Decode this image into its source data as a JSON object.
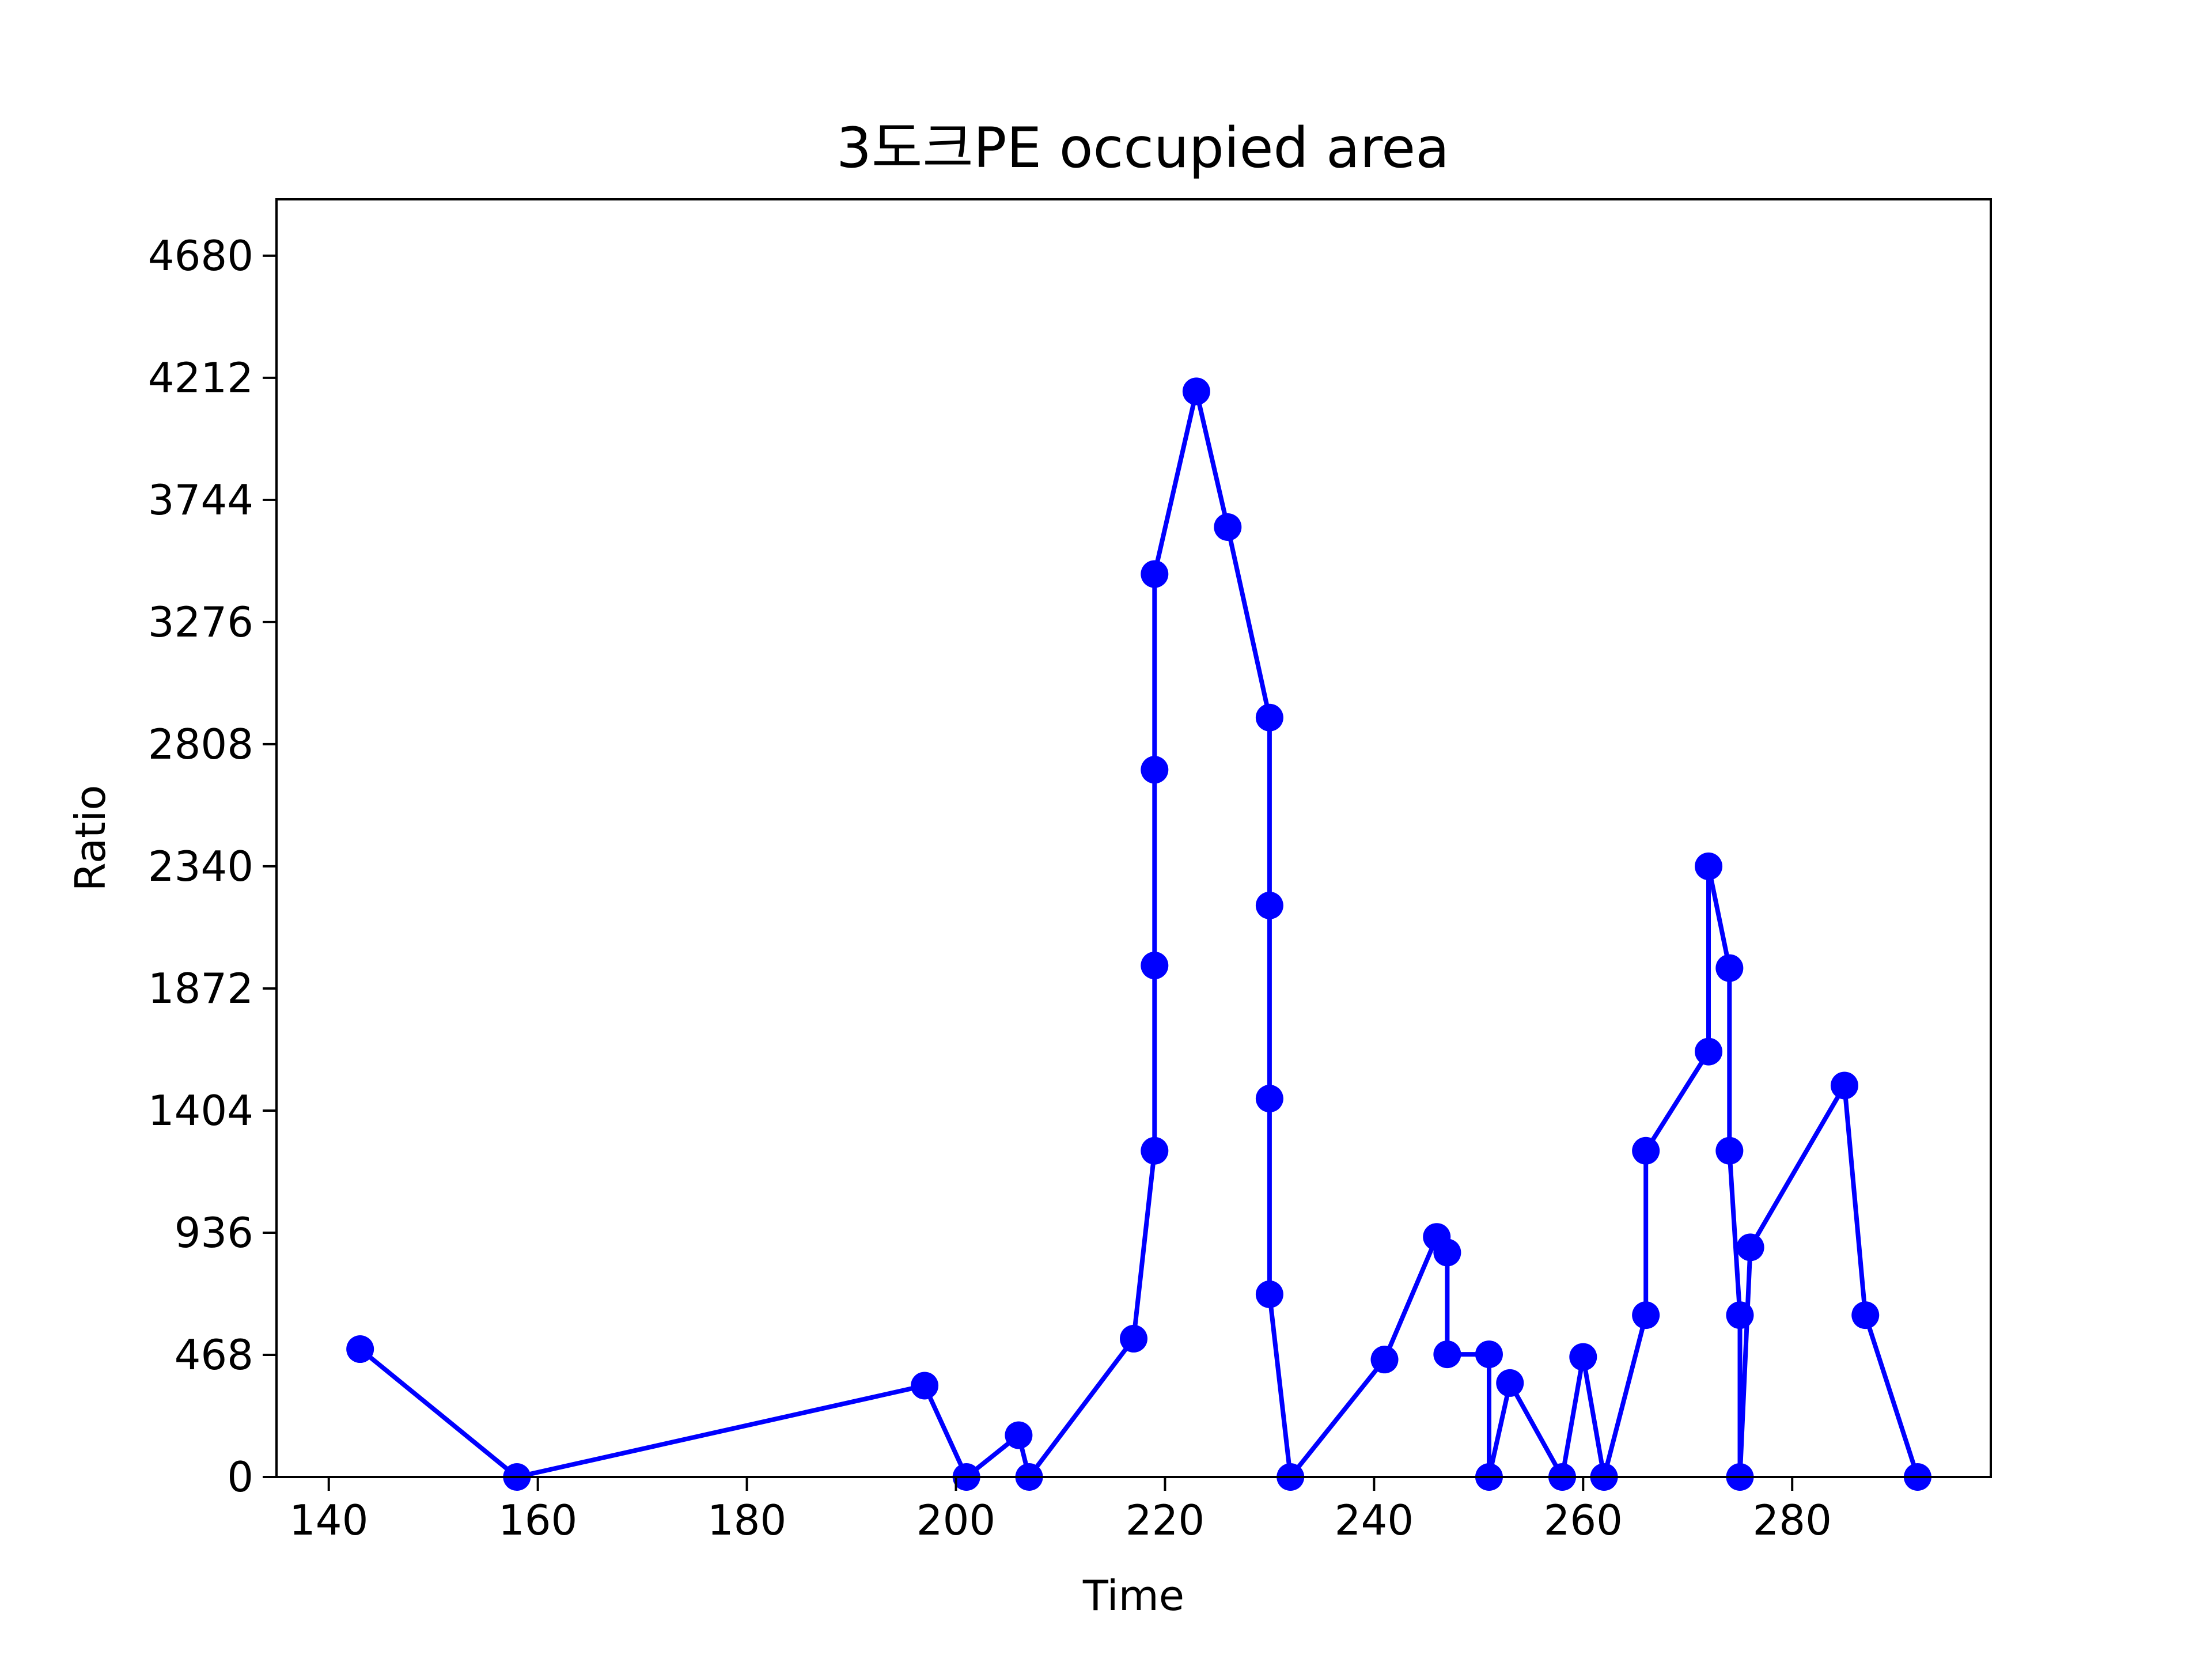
{
  "chart_data": {
    "type": "line",
    "title": "3도크PE occupied area",
    "xlabel": "Time",
    "ylabel": "Ratio",
    "xlim": [
      135,
      299
    ],
    "ylim": [
      0,
      4896
    ],
    "xticks": [
      140,
      160,
      180,
      200,
      220,
      240,
      260,
      280
    ],
    "yticks": [
      0,
      468,
      936,
      1404,
      1872,
      2340,
      2808,
      3276,
      3744,
      4212,
      4680
    ],
    "grid": false,
    "series": [
      {
        "color": "#0000ff",
        "marker": "circle",
        "points": [
          [
            143,
            490
          ],
          [
            158,
            0
          ],
          [
            197,
            350
          ],
          [
            201,
            0
          ],
          [
            206,
            160
          ],
          [
            207,
            0
          ],
          [
            217,
            530
          ],
          [
            219,
            1250
          ],
          [
            219,
            1960
          ],
          [
            219,
            2710
          ],
          [
            219,
            3460
          ],
          [
            223,
            4160
          ],
          [
            226,
            3640
          ],
          [
            230,
            2910
          ],
          [
            230,
            2190
          ],
          [
            230,
            1450
          ],
          [
            230,
            700
          ],
          [
            232,
            0
          ],
          [
            241,
            450
          ],
          [
            246,
            920
          ],
          [
            247,
            860
          ],
          [
            247,
            470
          ],
          [
            251,
            470
          ],
          [
            251,
            0
          ],
          [
            253,
            360
          ],
          [
            258,
            0
          ],
          [
            260,
            460
          ],
          [
            262,
            0
          ],
          [
            266,
            620
          ],
          [
            266,
            1250
          ],
          [
            272,
            1630
          ],
          [
            272,
            2340
          ],
          [
            274,
            1950
          ],
          [
            274,
            1250
          ],
          [
            275,
            620
          ],
          [
            275,
            0
          ],
          [
            276,
            880
          ],
          [
            285,
            1500
          ],
          [
            287,
            620
          ],
          [
            292,
            0
          ]
        ]
      }
    ]
  }
}
